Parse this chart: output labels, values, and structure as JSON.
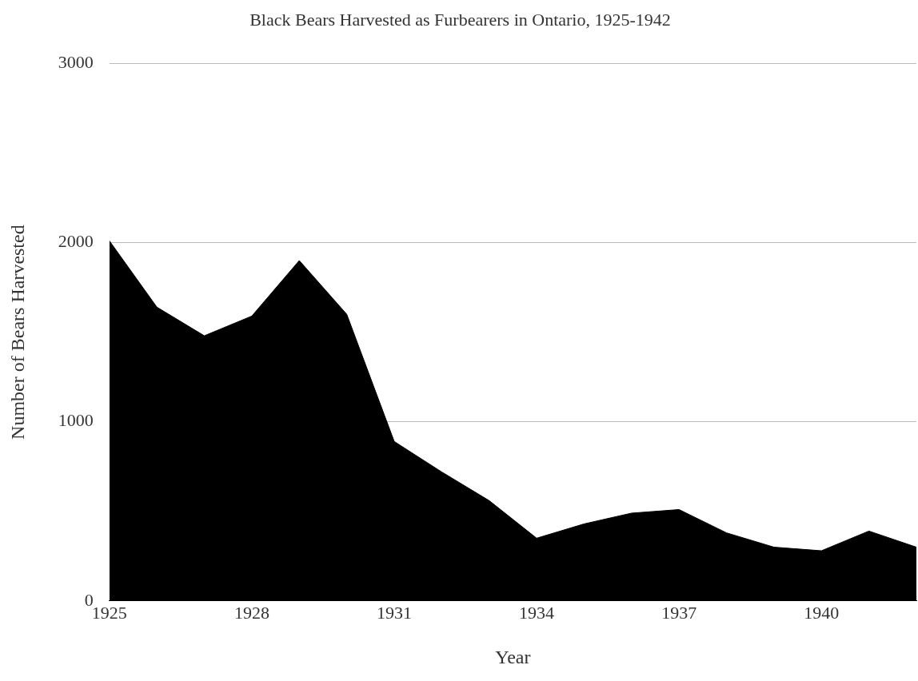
{
  "chart_data": {
    "type": "area",
    "title": "Black Bears Harvested as Furbearers in Ontario, 1925-1942",
    "xlabel": "Year",
    "ylabel": "Number of Bears Harvested",
    "x": [
      1925,
      1926,
      1927,
      1928,
      1929,
      1930,
      1931,
      1932,
      1933,
      1934,
      1935,
      1936,
      1937,
      1938,
      1939,
      1940,
      1941,
      1942
    ],
    "series": [
      {
        "color": "#000000",
        "values": [
          2010,
          1640,
          1480,
          1590,
          1900,
          1600,
          890,
          720,
          560,
          350,
          430,
          490,
          510,
          380,
          300,
          280,
          390,
          300
        ]
      }
    ],
    "xlim": [
      1925,
      1942
    ],
    "xticks": [
      1925,
      1928,
      1931,
      1934,
      1937,
      1940
    ],
    "ylim": [
      0,
      3000
    ],
    "yticks": [
      0,
      1000,
      2000,
      3000
    ],
    "grid": "y",
    "legend": false
  }
}
